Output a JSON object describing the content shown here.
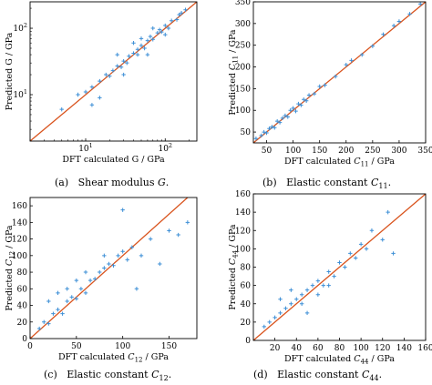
{
  "captions": [
    "(a)   Shear modulus G.",
    "(b)   Elastic constant C11.",
    "(c)   Elastic constant C12.",
    "(d)   Elastic constant C44."
  ],
  "colors": {
    "points": "#3d8fd6",
    "line": "#d9541e",
    "axes": "#000000"
  },
  "chart_data": [
    {
      "type": "scatter",
      "scale": "log",
      "xlabel": "DFT calculated G / GPa",
      "ylabel": "Predicted G / GPa",
      "xlim": [
        2,
        250
      ],
      "ylim": [
        2,
        250
      ],
      "xticks": [
        10,
        100
      ],
      "xticklabels": [
        "10^1",
        "10^2"
      ],
      "yticks": [
        10,
        100
      ],
      "yticklabels": [
        "10^1",
        "10^2"
      ],
      "reference_line": "y = x",
      "points": [
        [
          5.0,
          6.0
        ],
        [
          8.0,
          10.0
        ],
        [
          10.0,
          11.0
        ],
        [
          12.0,
          13.0
        ],
        [
          15.0,
          16.0
        ],
        [
          18.0,
          20.0
        ],
        [
          20.0,
          19.0
        ],
        [
          22.0,
          23.0
        ],
        [
          25.0,
          27.0
        ],
        [
          28.0,
          26.0
        ],
        [
          30.0,
          32.0
        ],
        [
          33.0,
          30.0
        ],
        [
          35.0,
          38.0
        ],
        [
          40.0,
          42.0
        ],
        [
          45.0,
          40.0
        ],
        [
          50.0,
          55.0
        ],
        [
          55.0,
          50.0
        ],
        [
          60.0,
          65.0
        ],
        [
          70.0,
          68.0
        ],
        [
          80.0,
          85.0
        ],
        [
          90.0,
          88.0
        ],
        [
          100.0,
          110.0
        ],
        [
          110.0,
          100.0
        ],
        [
          120.0,
          130.0
        ],
        [
          140.0,
          135.0
        ],
        [
          160.0,
          170.0
        ],
        [
          15.0,
          9.0
        ],
        [
          30.0,
          20.0
        ],
        [
          50.0,
          70.0
        ],
        [
          70.0,
          100.0
        ],
        [
          25.0,
          40.0
        ],
        [
          12.0,
          7.0
        ],
        [
          60.0,
          40.0
        ],
        [
          40.0,
          60.0
        ],
        [
          100.0,
          80.0
        ],
        [
          150.0,
          160.0
        ],
        [
          180.0,
          190.0
        ],
        [
          45.0,
          48.0
        ],
        [
          65.0,
          75.0
        ],
        [
          85.0,
          95.0
        ]
      ]
    },
    {
      "type": "scatter",
      "xlabel": "DFT calculated C11 / GPa",
      "ylabel": "Predicted C11 / GPa",
      "xlim": [
        25,
        350
      ],
      "ylim": [
        25,
        350
      ],
      "xticks": [
        50,
        100,
        150,
        200,
        250,
        300,
        350
      ],
      "yticks": [
        50,
        100,
        150,
        200,
        250,
        300,
        350
      ],
      "reference_line": "y = x",
      "points": [
        [
          30.0,
          35.0
        ],
        [
          40.0,
          42.0
        ],
        [
          45.0,
          50.0
        ],
        [
          50.0,
          48.0
        ],
        [
          55.0,
          58.0
        ],
        [
          60.0,
          62.0
        ],
        [
          65.0,
          60.0
        ],
        [
          70.0,
          75.0
        ],
        [
          75.0,
          72.0
        ],
        [
          80.0,
          82.0
        ],
        [
          85.0,
          88.0
        ],
        [
          90.0,
          85.0
        ],
        [
          95.0,
          100.0
        ],
        [
          100.0,
          105.0
        ],
        [
          105.0,
          98.0
        ],
        [
          110.0,
          115.0
        ],
        [
          115.0,
          112.0
        ],
        [
          120.0,
          125.0
        ],
        [
          125.0,
          122.0
        ],
        [
          130.0,
          135.0
        ],
        [
          140.0,
          138.0
        ],
        [
          150.0,
          155.0
        ],
        [
          160.0,
          158.0
        ],
        [
          180.0,
          178.0
        ],
        [
          200.0,
          205.0
        ],
        [
          210.0,
          215.0
        ],
        [
          230.0,
          228.0
        ],
        [
          250.0,
          248.0
        ],
        [
          270.0,
          275.0
        ],
        [
          290.0,
          295.0
        ],
        [
          300.0,
          305.0
        ],
        [
          320.0,
          322.0
        ],
        [
          340.0,
          345.0
        ]
      ]
    },
    {
      "type": "scatter",
      "xlabel": "DFT calculated C12 / GPa",
      "ylabel": "Predicted C12 / GPa",
      "xlim": [
        0,
        180
      ],
      "ylim": [
        0,
        170
      ],
      "xticks": [
        0,
        50,
        100,
        150
      ],
      "yticks": [
        0,
        20,
        40,
        60,
        80,
        100,
        120,
        140,
        160
      ],
      "reference_line": "y = x",
      "points": [
        [
          10.0,
          12.0
        ],
        [
          15.0,
          20.0
        ],
        [
          20.0,
          18.0
        ],
        [
          25.0,
          30.0
        ],
        [
          30.0,
          35.0
        ],
        [
          35.0,
          30.0
        ],
        [
          40.0,
          45.0
        ],
        [
          45.0,
          50.0
        ],
        [
          50.0,
          48.0
        ],
        [
          55.0,
          60.0
        ],
        [
          60.0,
          55.0
        ],
        [
          65.0,
          70.0
        ],
        [
          70.0,
          72.0
        ],
        [
          75.0,
          80.0
        ],
        [
          80.0,
          85.0
        ],
        [
          85.0,
          90.0
        ],
        [
          90.0,
          88.0
        ],
        [
          95.0,
          100.0
        ],
        [
          100.0,
          105.0
        ],
        [
          105.0,
          95.0
        ],
        [
          110.0,
          110.0
        ],
        [
          120.0,
          100.0
        ],
        [
          130.0,
          120.0
        ],
        [
          140.0,
          90.0
        ],
        [
          150.0,
          130.0
        ],
        [
          160.0,
          125.0
        ],
        [
          170.0,
          140.0
        ],
        [
          20.0,
          45.0
        ],
        [
          30.0,
          55.0
        ],
        [
          40.0,
          60.0
        ],
        [
          60.0,
          80.0
        ],
        [
          80.0,
          100.0
        ],
        [
          100.0,
          155.0
        ],
        [
          115.0,
          60.0
        ],
        [
          50.0,
          70.0
        ]
      ]
    },
    {
      "type": "scatter",
      "xlabel": "DFT calculated C44 / GPa",
      "ylabel": "Predicted C44 / GPa",
      "xlim": [
        0,
        160
      ],
      "ylim": [
        0,
        160
      ],
      "xticks": [
        20,
        40,
        60,
        80,
        100,
        120,
        140,
        160
      ],
      "yticks": [
        0,
        20,
        40,
        60,
        80,
        100,
        120,
        140,
        160
      ],
      "reference_line": "y = x",
      "points": [
        [
          10.0,
          15.0
        ],
        [
          15.0,
          20.0
        ],
        [
          20.0,
          25.0
        ],
        [
          25.0,
          30.0
        ],
        [
          30.0,
          35.0
        ],
        [
          35.0,
          40.0
        ],
        [
          40.0,
          45.0
        ],
        [
          45.0,
          50.0
        ],
        [
          50.0,
          55.0
        ],
        [
          55.0,
          60.0
        ],
        [
          60.0,
          65.0
        ],
        [
          65.0,
          60.0
        ],
        [
          70.0,
          75.0
        ],
        [
          75.0,
          70.0
        ],
        [
          80.0,
          85.0
        ],
        [
          85.0,
          80.0
        ],
        [
          90.0,
          95.0
        ],
        [
          95.0,
          90.0
        ],
        [
          100.0,
          105.0
        ],
        [
          105.0,
          100.0
        ],
        [
          110.0,
          120.0
        ],
        [
          120.0,
          110.0
        ],
        [
          125.0,
          140.0
        ],
        [
          130.0,
          95.0
        ],
        [
          25.0,
          45.0
        ],
        [
          35.0,
          55.0
        ],
        [
          45.0,
          40.0
        ],
        [
          50.0,
          30.0
        ],
        [
          60.0,
          50.0
        ],
        [
          70.0,
          60.0
        ]
      ]
    }
  ]
}
